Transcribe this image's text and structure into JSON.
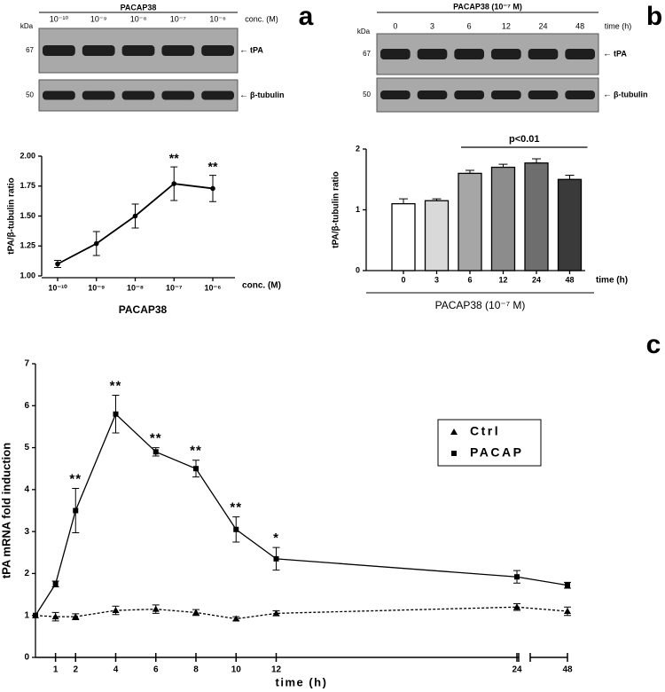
{
  "panel_labels": [
    "a",
    "b",
    "c"
  ],
  "blots": [
    {
      "title": "PACAP38",
      "lanes": [
        "10⁻¹⁰",
        "10⁻⁹",
        "10⁻⁸",
        "10⁻⁷",
        "10⁻⁶"
      ],
      "lane_unit": "conc. (M)",
      "kda_label": "kDa",
      "marker_top": "67",
      "marker_bottom": "50",
      "band_top": "tPA",
      "band_bottom": "β-tubulin"
    },
    {
      "title": "PACAP38 (10⁻⁷ M)",
      "lanes": [
        "0",
        "3",
        "6",
        "12",
        "24",
        "48"
      ],
      "lane_unit": "time (h)",
      "kda_label": "kDa",
      "marker_top": "67",
      "marker_bottom": "50",
      "band_top": "tPA",
      "band_bottom": "β-tubulin"
    }
  ],
  "chart_data": [
    {
      "type": "line",
      "ylabel": "tPA/β-tubulin ratio",
      "xlabel": "PACAP38",
      "x_unit_label": "conc. (M)",
      "categories": [
        "10⁻¹⁰",
        "10⁻⁹",
        "10⁻⁸",
        "10⁻⁷",
        "10⁻⁶"
      ],
      "series": [
        {
          "color": "#000000",
          "values": [
            1.1,
            1.27,
            1.5,
            1.77,
            1.73
          ],
          "errors": [
            0.03,
            0.1,
            0.1,
            0.14,
            0.11
          ],
          "annotations": [
            null,
            null,
            null,
            "**",
            "**"
          ]
        }
      ],
      "ylim": [
        1,
        2
      ],
      "yticks": [
        {
          "value": 1,
          "label": "1.00"
        },
        {
          "value": 1.25,
          "label": "1.25"
        },
        {
          "value": 1.5,
          "label": "1.50"
        },
        {
          "value": 1.75,
          "label": "1.75"
        },
        {
          "value": 2,
          "label": "2.00"
        }
      ]
    },
    {
      "type": "bar",
      "ylabel": "tPA/β-tubulin ratio",
      "xlabel": "PACAP38 (10⁻⁷ M)",
      "x_unit_label": "time (h)",
      "significance": "p<0.01",
      "categories": [
        "0",
        "3",
        "6",
        "12",
        "24",
        "48"
      ],
      "values": [
        1.1,
        1.15,
        1.6,
        1.7,
        1.77,
        1.5
      ],
      "errors": [
        0.08,
        0.03,
        0.05,
        0.05,
        0.07,
        0.07
      ],
      "colors": [
        "#ffffff",
        "#d9d9d9",
        "#a6a6a6",
        "#8c8c8c",
        "#6e6e6e",
        "#3a3a3a"
      ],
      "ylim": [
        0,
        2
      ],
      "yticks": [
        0,
        1,
        2
      ]
    },
    {
      "type": "line",
      "ylabel": "tPA mRNA fold induction",
      "xlabel": "time (h)",
      "axis_break": true,
      "legend": "right",
      "x": [
        0,
        1,
        2,
        4,
        6,
        8,
        10,
        12,
        24,
        48
      ],
      "xlim": [
        0,
        48
      ],
      "xticks": [
        1,
        2,
        4,
        6,
        8,
        10,
        12,
        24,
        48
      ],
      "ylim": [
        0,
        7
      ],
      "yticks": [
        0,
        1,
        2,
        3,
        4,
        5,
        6,
        7
      ],
      "series": [
        {
          "name": "Ctrl",
          "color": "#000000",
          "marker": "triangle",
          "linestyle": "dashed",
          "values": [
            1,
            0.97,
            0.97,
            1.12,
            1.15,
            1.07,
            0.92,
            1.05,
            1.2,
            1.1
          ],
          "errors": [
            0,
            0.1,
            0.07,
            0.1,
            0.1,
            0.07,
            0.05,
            0.06,
            0.08,
            0.1
          ]
        },
        {
          "name": "PACAP",
          "color": "#000000",
          "marker": "square",
          "linestyle": "solid",
          "values": [
            1,
            1.75,
            3.5,
            5.8,
            4.9,
            4.5,
            3.05,
            2.35,
            1.92,
            1.72
          ],
          "errors": [
            0,
            0.07,
            0.53,
            0.45,
            0.1,
            0.2,
            0.3,
            0.27,
            0.15,
            0.07
          ],
          "annotations": [
            null,
            null,
            "**",
            "**",
            "**",
            "**",
            "**",
            "*",
            null,
            null
          ]
        }
      ]
    }
  ]
}
